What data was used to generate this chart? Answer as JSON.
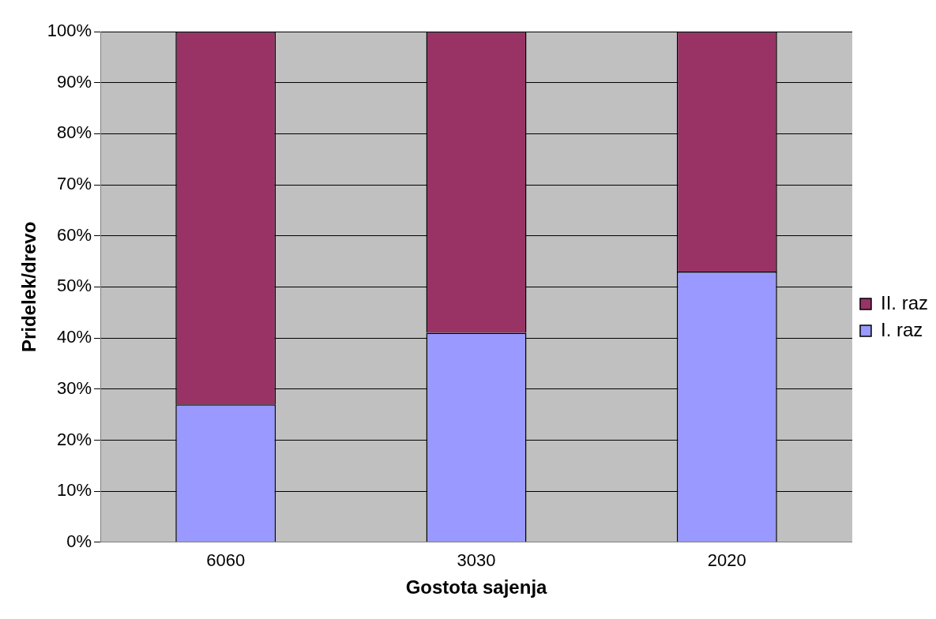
{
  "chart_data": {
    "type": "bar",
    "stacked": true,
    "xlabel": "Gostota sajenja",
    "ylabel": "Pridelek/drevo",
    "categories": [
      "6060",
      "3030",
      "2020"
    ],
    "series": [
      {
        "name": "I. raz",
        "color": "#9999ff",
        "values": [
          27,
          41,
          53
        ]
      },
      {
        "name": "II. raz",
        "color": "#993366",
        "values": [
          73,
          59,
          47
        ]
      }
    ],
    "ylim": [
      0,
      100
    ],
    "yticks": [
      {
        "value": 0,
        "label": "0%"
      },
      {
        "value": 10,
        "label": "10%"
      },
      {
        "value": 20,
        "label": "20%"
      },
      {
        "value": 30,
        "label": "30%"
      },
      {
        "value": 40,
        "label": "40%"
      },
      {
        "value": 50,
        "label": "50%"
      },
      {
        "value": 60,
        "label": "60%"
      },
      {
        "value": 70,
        "label": "70%"
      },
      {
        "value": 80,
        "label": "80%"
      },
      {
        "value": 90,
        "label": "90%"
      },
      {
        "value": 100,
        "label": "100%"
      }
    ],
    "grid": "y",
    "legend": "right"
  }
}
